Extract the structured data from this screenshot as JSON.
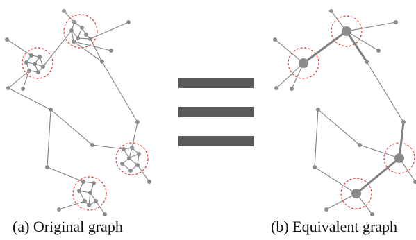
{
  "figure": {
    "caption_a": "(a) Original graph",
    "caption_b": "(b) Equivalent graph"
  },
  "colors": {
    "edge": "#7f7f7f",
    "node": "#8c8c8c",
    "highlight_circle": "#e03030",
    "equals_sign": "#595959",
    "caption_text": "#111111"
  },
  "diagram": {
    "relation_symbol": "equals",
    "original_graph": {
      "cluster_count": 4,
      "nodes_in_clusters": [
        6,
        7,
        7,
        7
      ]
    },
    "equivalent_graph": {
      "description_from_image": "each dashed circle contracted to a single larger node; cluster-to-cluster links drawn thicker"
    }
  }
}
